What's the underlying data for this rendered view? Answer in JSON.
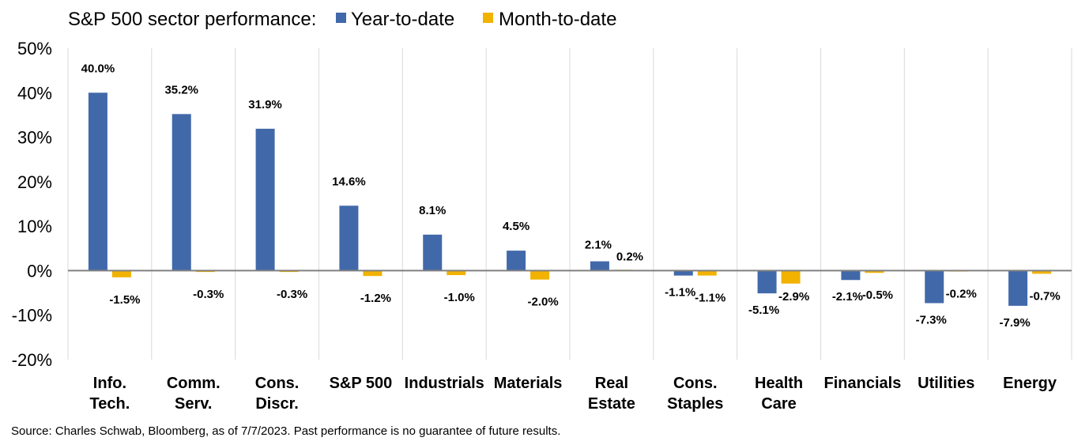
{
  "chart_data": {
    "type": "bar",
    "title": "S&P 500 sector performance:",
    "categories": [
      [
        "Info.",
        "Tech."
      ],
      [
        "Comm.",
        "Serv."
      ],
      [
        "Cons.",
        "Discr."
      ],
      [
        "S&P 500"
      ],
      [
        "Industrials"
      ],
      [
        "Materials"
      ],
      [
        "Real",
        "Estate"
      ],
      [
        "Cons.",
        "Staples"
      ],
      [
        "Health",
        "Care"
      ],
      [
        "Financials"
      ],
      [
        "Utilities"
      ],
      [
        "Energy"
      ]
    ],
    "series": [
      {
        "name": "Year-to-date",
        "color": "#4169aa",
        "values": [
          40.0,
          35.2,
          31.9,
          14.6,
          8.1,
          4.5,
          2.1,
          -1.1,
          -5.1,
          -2.1,
          -7.3,
          -7.9
        ],
        "labels": [
          "40.0%",
          "35.2%",
          "31.9%",
          "14.6%",
          "8.1%",
          "4.5%",
          "2.1%",
          "-1.1%",
          "-5.1%",
          "-2.1%",
          "-7.3%",
          "-7.9%"
        ]
      },
      {
        "name": "Month-to-date",
        "color": "#f2b200",
        "values": [
          -1.5,
          -0.3,
          -0.3,
          -1.2,
          -1.0,
          -2.0,
          0.2,
          -1.1,
          -2.9,
          -0.5,
          -0.2,
          -0.7
        ],
        "labels": [
          "-1.5%",
          "-0.3%",
          "-0.3%",
          "-1.2%",
          "-1.0%",
          "-2.0%",
          "0.2%",
          "-1.1%",
          "-2.9%",
          "-0.5%",
          "-0.2%",
          "-0.7%"
        ]
      }
    ],
    "ylim": [
      -20,
      50
    ],
    "yticks": [
      "50%",
      "40%",
      "30%",
      "20%",
      "10%",
      "0%",
      "-10%",
      "-20%"
    ],
    "ytick_values": [
      50,
      40,
      30,
      20,
      10,
      0,
      -10,
      -20
    ],
    "grid": "vertical category separators",
    "legend": "top, after title",
    "source": "Source: Charles Schwab, Bloomberg, as of 7/7/2023.  Past performance is no guarantee of future results."
  }
}
